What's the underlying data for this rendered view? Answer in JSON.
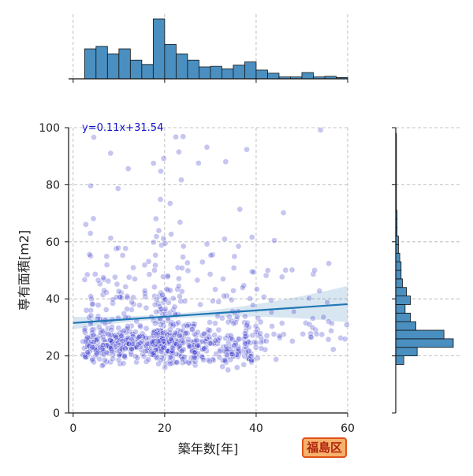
{
  "chart_data": {
    "type": "scatter",
    "xlabel": "築年数[年]",
    "ylabel": "専有面積[m2]",
    "xlim": [
      -1,
      60
    ],
    "ylim": [
      0,
      100
    ],
    "x_ticks": [
      0,
      20,
      40,
      60
    ],
    "y_ticks": [
      0,
      20,
      40,
      60,
      80,
      100
    ],
    "grid": true,
    "regression": {
      "label": "y=0.11x+31.54",
      "slope": 0.11,
      "intercept": 31.54,
      "color": "#1f77b4"
    },
    "point_color": "#3333cc",
    "hist_color": "#4a8fc0",
    "marginal_x": {
      "bin_edges": [
        2.5,
        5,
        7.5,
        10,
        12.5,
        15,
        17.5,
        20,
        22.5,
        25,
        27.5,
        30,
        32.5,
        35,
        37.5,
        40,
        42.5,
        45,
        47.5,
        50,
        52.5,
        55,
        57.5,
        60
      ],
      "counts": [
        48,
        52,
        40,
        48,
        30,
        23,
        96,
        55,
        40,
        30,
        19,
        20,
        16,
        22,
        27,
        14,
        9,
        3,
        3,
        10,
        3,
        4,
        2
      ]
    },
    "marginal_y": {
      "bin_edges": [
        17,
        20,
        23,
        26,
        29,
        32,
        35,
        38,
        41,
        44,
        47,
        50,
        53,
        56,
        59,
        62,
        65,
        68,
        71,
        74,
        77,
        80,
        83,
        86,
        89,
        92,
        95,
        98
      ],
      "counts": [
        6,
        16,
        43,
        36,
        15,
        11,
        7,
        11,
        8,
        5,
        4,
        4,
        3,
        2,
        2,
        1,
        1,
        1,
        0.5,
        0.5,
        0.5,
        0.5,
        0.5,
        0.5,
        0.5,
        0.5,
        0.5
      ]
    }
  },
  "badge": {
    "text": "福島区"
  }
}
